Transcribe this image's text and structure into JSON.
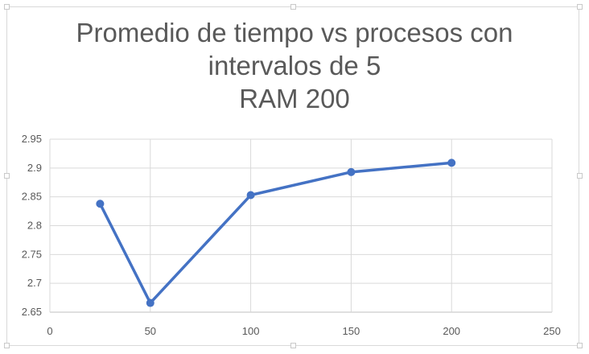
{
  "chart_data": {
    "type": "line",
    "title_lines": [
      "Promedio de tiempo vs procesos con",
      "intervalos de 5",
      "RAM 200"
    ],
    "xlabel": "",
    "ylabel": "",
    "xlim": [
      0,
      250
    ],
    "ylim": [
      2.65,
      2.95
    ],
    "x_ticks": [
      "0",
      "50",
      "100",
      "150",
      "200",
      "250"
    ],
    "y_ticks": [
      "2.65",
      "2.7",
      "2.75",
      "2.8",
      "2.85",
      "2.9",
      "2.95"
    ],
    "grid": true,
    "legend": "none",
    "series": [
      {
        "color": "#4472c4",
        "x": [
          25,
          50,
          100,
          150,
          200
        ],
        "y": [
          2.838,
          2.666,
          2.853,
          2.893,
          2.909
        ]
      }
    ]
  }
}
